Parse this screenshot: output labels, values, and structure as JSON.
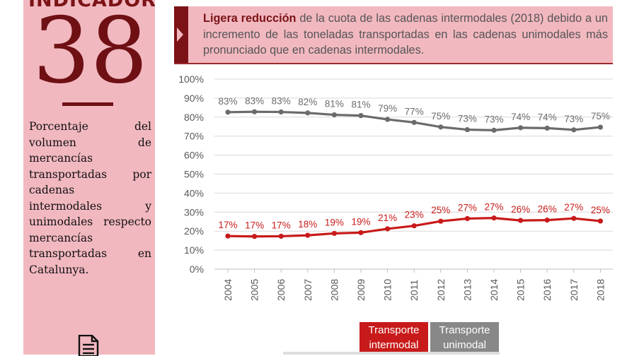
{
  "indicator": {
    "label": "INDICADOR",
    "number": "38"
  },
  "description": "Porcentaje del volumen de mercancías transportadas por cadenas intermodales y unimodales respecto mercancías transportadas en Catalunya.",
  "headline": {
    "bold": "Ligera reducción",
    "rest": " de la cuota de las cadenas intermodales (2018) debido a un incremento de las toneladas transportadas en las cadenas unimodales más pronunciado que en cadenas intermodales."
  },
  "legend": {
    "intermodal": "Transporte intermodal",
    "unimodal": "Transporte unimodal"
  },
  "colors": {
    "intermodal": "#c81a1a",
    "unimodal": "#6b6b6b",
    "accent": "#7b1316",
    "panel": "#f2b8c0"
  },
  "icons": [
    "document-icon"
  ],
  "chart_data": {
    "type": "line",
    "x": [
      "2004",
      "2005",
      "2006",
      "2007",
      "2008",
      "2009",
      "2010",
      "2011",
      "2012",
      "2013",
      "2014",
      "2015",
      "2016",
      "2017",
      "2018"
    ],
    "ylim": [
      0,
      100
    ],
    "yticks": [
      "0%",
      "10%",
      "20%",
      "30%",
      "40%",
      "50%",
      "60%",
      "70%",
      "80%",
      "90%",
      "100%"
    ],
    "grid": true,
    "legend_position": "bottom",
    "series": [
      {
        "name": "Transporte unimodal",
        "color": "#6b6b6b",
        "values": [
          82.6,
          82.8,
          82.7,
          82.2,
          81.2,
          80.8,
          78.8,
          77.2,
          74.8,
          73.4,
          73.1,
          74.4,
          74.2,
          73.3,
          74.7
        ],
        "labels": [
          "83%",
          "83%",
          "83%",
          "82%",
          "81%",
          "81%",
          "79%",
          "77%",
          "75%",
          "73%",
          "73%",
          "74%",
          "74%",
          "73%",
          "75%"
        ]
      },
      {
        "name": "Transporte intermodal",
        "color": "#c81a1a",
        "values": [
          17.4,
          17.2,
          17.3,
          17.8,
          18.8,
          19.2,
          21.2,
          22.8,
          25.2,
          26.6,
          26.9,
          25.6,
          25.8,
          26.7,
          25.3
        ],
        "labels": [
          "17%",
          "17%",
          "17%",
          "18%",
          "19%",
          "19%",
          "21%",
          "23%",
          "25%",
          "27%",
          "27%",
          "26%",
          "26%",
          "27%",
          "25%"
        ]
      }
    ]
  }
}
